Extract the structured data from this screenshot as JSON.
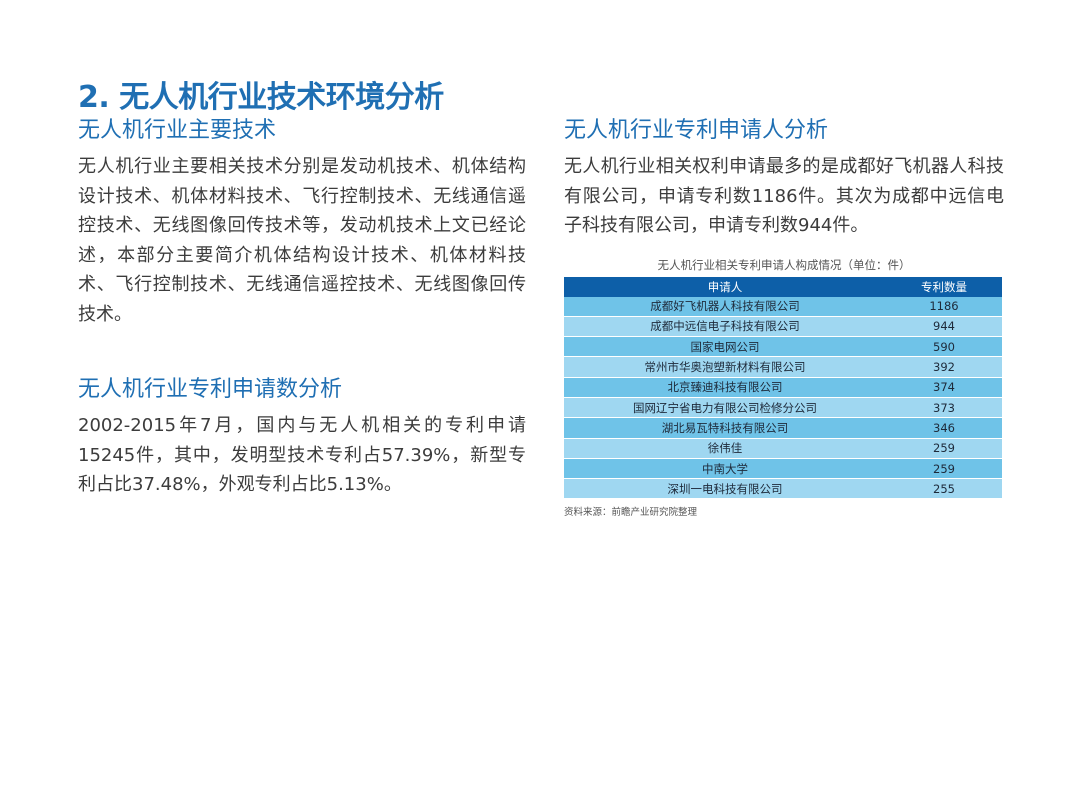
{
  "page_title": "2. 无人机行业技术环境分析",
  "left": {
    "section1": {
      "title": "无人机行业主要技术",
      "text": "无人机行业主要相关技术分别是发动机技术、机体结构设计技术、机体材料技术、飞行控制技术、无线通信遥控技术、无线图像回传技术等，发动机技术上文已经论述，本部分主要简介机体结构设计技术、机体材料技术、飞行控制技术、无线通信遥控技术、无线图像回传技术。"
    },
    "section2": {
      "title": "无人机行业专利申请数分析",
      "text": "2002-2015年7月，国内与无人机相关的专利申请15245件，其中，发明型技术专利占57.39%，新型专利占比37.48%，外观专利占比5.13%。"
    }
  },
  "right": {
    "section": {
      "title": "无人机行业专利申请人分析",
      "text": "无人机行业相关权利申请最多的是成都好飞机器人科技有限公司，申请专利数1186件。其次为成都中远信电子科技有限公司，申请专利数944件。"
    },
    "table": {
      "caption": "无人机行业相关专利申请人构成情况（单位：件）",
      "headers": [
        "申请人",
        "专利数量"
      ],
      "rows": [
        [
          "成都好飞机器人科技有限公司",
          "1186"
        ],
        [
          "成都中远信电子科技有限公司",
          "944"
        ],
        [
          "国家电网公司",
          "590"
        ],
        [
          "常州市华奥泡塑新材料有限公司",
          "392"
        ],
        [
          "北京臻迪科技有限公司",
          "374"
        ],
        [
          "国网辽宁省电力有限公司检修分公司",
          "373"
        ],
        [
          "湖北易瓦特科技有限公司",
          "346"
        ],
        [
          "徐伟佳",
          "259"
        ],
        [
          "中南大学",
          "259"
        ],
        [
          "深圳一电科技有限公司",
          "255"
        ]
      ],
      "source": "资料来源：前瞻产业研究院整理"
    }
  },
  "colors": {
    "title_blue": "#1f6fb3",
    "table_header": "#0d5fa8",
    "row_dark": "#6fc3e8",
    "row_light": "#9fd7f1"
  }
}
